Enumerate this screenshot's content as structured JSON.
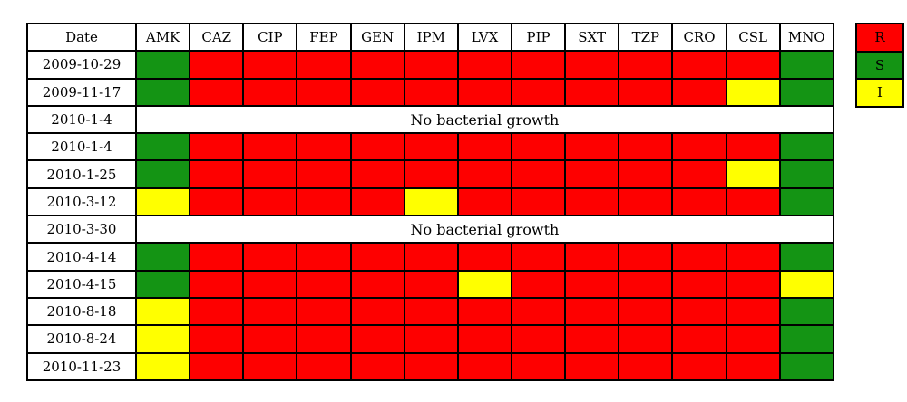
{
  "chart_data": {
    "type": "heatmap",
    "corner_label": "Date",
    "columns": [
      "AMK",
      "CAZ",
      "CIP",
      "FEP",
      "GEN",
      "IPM",
      "LVX",
      "PIP",
      "SXT",
      "TZP",
      "CRO",
      "CSL",
      "MNO"
    ],
    "rows": [
      {
        "date": "2009-10-29",
        "values": [
          "S",
          "R",
          "R",
          "R",
          "R",
          "R",
          "R",
          "R",
          "R",
          "R",
          "R",
          "R",
          "S"
        ]
      },
      {
        "date": "2009-11-17",
        "values": [
          "S",
          "R",
          "R",
          "R",
          "R",
          "R",
          "R",
          "R",
          "R",
          "R",
          "R",
          "I",
          "S"
        ]
      },
      {
        "date": "2010-1-4",
        "note": "No bacterial growth"
      },
      {
        "date": "2010-1-4",
        "values": [
          "S",
          "R",
          "R",
          "R",
          "R",
          "R",
          "R",
          "R",
          "R",
          "R",
          "R",
          "R",
          "S"
        ]
      },
      {
        "date": "2010-1-25",
        "values": [
          "S",
          "R",
          "R",
          "R",
          "R",
          "R",
          "R",
          "R",
          "R",
          "R",
          "R",
          "I",
          "S"
        ]
      },
      {
        "date": "2010-3-12",
        "values": [
          "I",
          "R",
          "R",
          "R",
          "R",
          "I",
          "R",
          "R",
          "R",
          "R",
          "R",
          "R",
          "S"
        ]
      },
      {
        "date": "2010-3-30",
        "note": "No bacterial growth"
      },
      {
        "date": "2010-4-14",
        "values": [
          "S",
          "R",
          "R",
          "R",
          "R",
          "R",
          "R",
          "R",
          "R",
          "R",
          "R",
          "R",
          "S"
        ]
      },
      {
        "date": "2010-4-15",
        "values": [
          "S",
          "R",
          "R",
          "R",
          "R",
          "R",
          "I",
          "R",
          "R",
          "R",
          "R",
          "R",
          "I"
        ]
      },
      {
        "date": "2010-8-18",
        "values": [
          "I",
          "R",
          "R",
          "R",
          "R",
          "R",
          "R",
          "R",
          "R",
          "R",
          "R",
          "R",
          "S"
        ]
      },
      {
        "date": "2010-8-24",
        "values": [
          "I",
          "R",
          "R",
          "R",
          "R",
          "R",
          "R",
          "R",
          "R",
          "R",
          "R",
          "R",
          "S"
        ]
      },
      {
        "date": "2010-11-23",
        "values": [
          "I",
          "R",
          "R",
          "R",
          "R",
          "R",
          "R",
          "R",
          "R",
          "R",
          "R",
          "R",
          "S"
        ]
      }
    ],
    "legend": [
      {
        "key": "R",
        "color": "#fe0000"
      },
      {
        "key": "S",
        "color": "#149414"
      },
      {
        "key": "I",
        "color": "#ffff00"
      }
    ]
  }
}
